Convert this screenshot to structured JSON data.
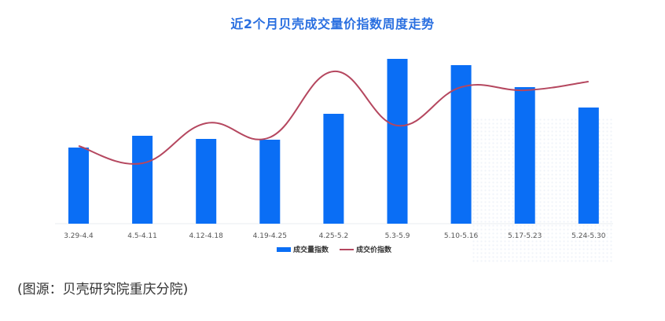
{
  "title": "近2个月贝壳成交量价指数周度走势",
  "source_note": "(图源：贝壳研究院重庆分院)",
  "legend": {
    "bar_label": "成交量指数",
    "line_label": "成交价指数"
  },
  "colors": {
    "bar": "#0a6ef5",
    "line": "#b5475f",
    "title": "#2a6fe0"
  },
  "chart_data": {
    "type": "bar",
    "title": "近2个月贝壳成交量价指数周度走势",
    "xlabel": "",
    "ylabel": "",
    "grid": false,
    "legend_position": "bottom",
    "note": "No y-axis shown; values are relative heights estimated from pixel geometry (baseline = 0).",
    "categories": [
      "3.29-4.4",
      "4.5-4.11",
      "4.12-4.18",
      "4.19-4.25",
      "4.25-5.2",
      "5.3-5.9",
      "5.10-5.16",
      "5.17-5.23",
      "5.24-5.30"
    ],
    "series": [
      {
        "name": "成交量指数",
        "type": "bar",
        "values": [
          97,
          112,
          108,
          107,
          140,
          210,
          202,
          174,
          148
        ]
      },
      {
        "name": "成交价指数",
        "type": "line",
        "values": [
          99,
          77,
          128,
          110,
          194,
          125,
          174,
          170,
          181
        ]
      }
    ],
    "ylim": [
      0,
      220
    ]
  }
}
